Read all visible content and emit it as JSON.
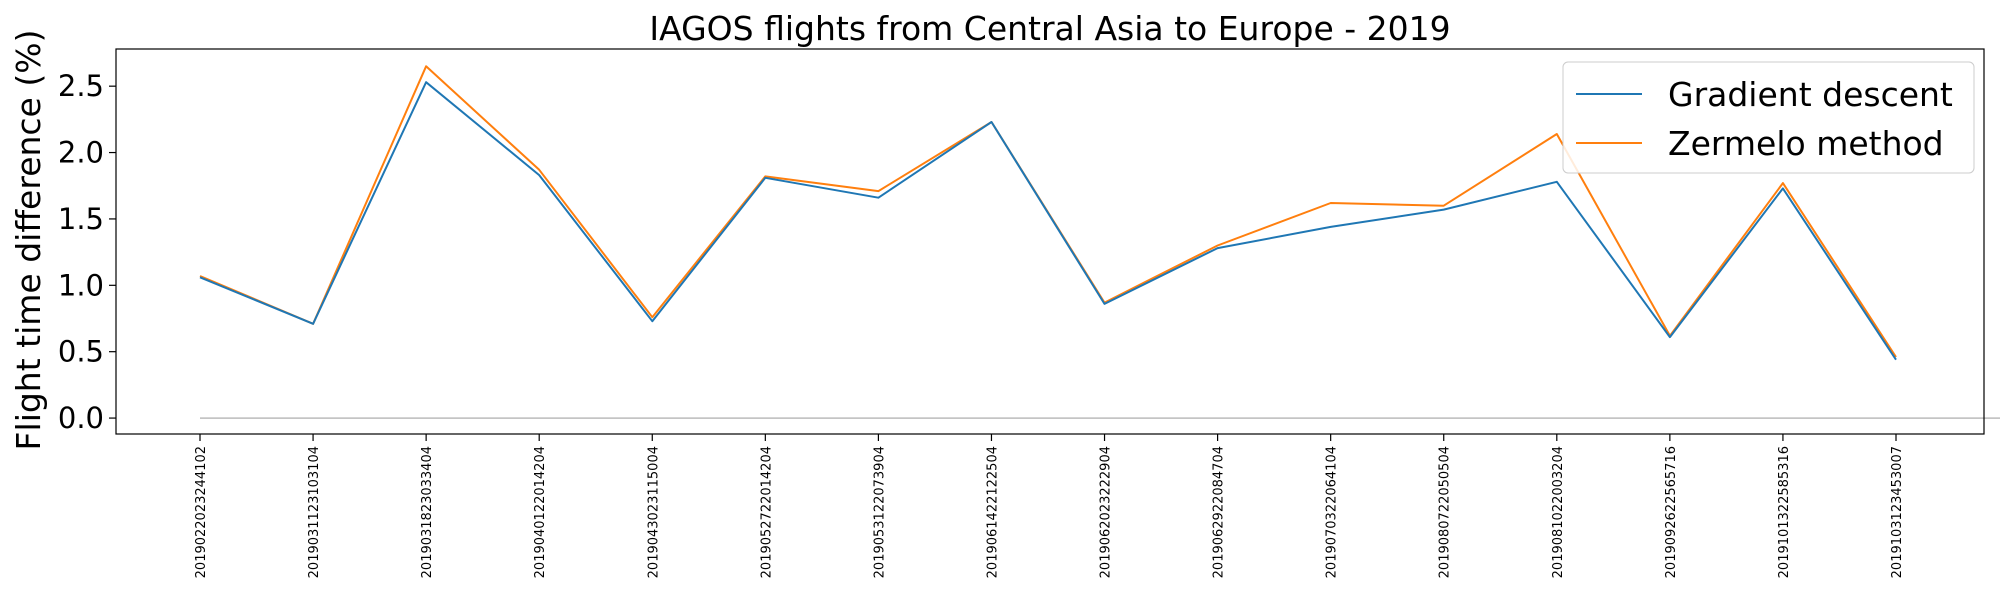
{
  "chart_data": {
    "type": "line",
    "title": "IAGOS flights from Central Asia to Europe - 2019",
    "xlabel": "",
    "ylabel": "Flight time difference (%)",
    "ylim": [
      -0.12,
      2.78
    ],
    "yticks": [
      0.0,
      0.5,
      1.0,
      1.5,
      2.0,
      2.5
    ],
    "ytick_labels": [
      "0.0",
      "0.5",
      "1.0",
      "1.5",
      "2.0",
      "2.5"
    ],
    "categories": [
      "2019022023244102",
      "2019031123103104",
      "2019031823033404",
      "2019040122014204",
      "2019043023115004",
      "2019052722014204",
      "2019053122073904",
      "2019061422122504",
      "2019062023222904",
      "2019062922084704",
      "2019070322064104",
      "2019080722050504",
      "2019081022003204",
      "2019092622565716",
      "2019101322585316",
      "2019103123453007"
    ],
    "series": [
      {
        "name": "Gradient descent",
        "color": "#1f77b4",
        "values": [
          1.06,
          0.71,
          2.53,
          1.83,
          0.73,
          1.81,
          1.66,
          2.23,
          0.86,
          1.28,
          1.44,
          1.57,
          1.78,
          0.61,
          1.73,
          0.44
        ]
      },
      {
        "name": "Zermelo method",
        "color": "#ff7f0e",
        "values": [
          1.07,
          0.71,
          2.65,
          1.87,
          0.76,
          1.82,
          1.71,
          2.23,
          0.87,
          1.3,
          1.62,
          1.6,
          2.14,
          0.62,
          1.77,
          0.46
        ]
      }
    ],
    "reference_line": {
      "value": 0.0,
      "color": "#bbbbbb"
    },
    "grid": false,
    "legend_position": "top-right"
  }
}
